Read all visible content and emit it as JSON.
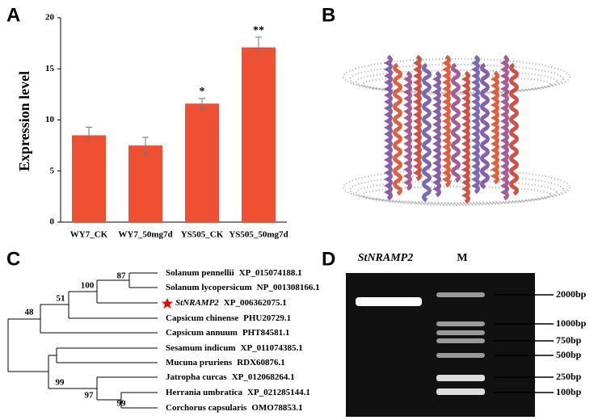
{
  "chart_data": {
    "type": "bar",
    "panel_label": "A",
    "ylabel": "Expression level",
    "categories": [
      "WY7_CK",
      "WY7_50mg7d",
      "YS505_CK",
      "YS505_50mg7d"
    ],
    "values": [
      8.5,
      7.5,
      11.6,
      17.1
    ],
    "errors": [
      0.8,
      0.8,
      0.5,
      1.0
    ],
    "significance": [
      null,
      null,
      "*",
      "**"
    ],
    "color": "#f05032",
    "ylim": [
      0,
      20
    ],
    "yticks": [
      0,
      5,
      10,
      15,
      20
    ]
  },
  "panel_b": {
    "label": "B"
  },
  "panel_c": {
    "label": "C",
    "taxa": [
      {
        "species": "Solanum pennellii",
        "accession": "XP_015074188.1"
      },
      {
        "species": "Solanum lycopersicum",
        "accession": "NP_001308166.1"
      },
      {
        "species": "StNRAMP2",
        "accession": "XP_006362075.1"
      },
      {
        "species": "Capsicum chinense",
        "accession": "PHU20729.1"
      },
      {
        "species": "Capsicum annuum",
        "accession": "PHT84581.1"
      },
      {
        "species": "Sesamum indicum",
        "accession": "XP_011074385.1"
      },
      {
        "species": "Mucuna pruriens",
        "accession": "RDX60876.1"
      },
      {
        "species": "Jatropha curcas",
        "accession": "XP_012068264.1"
      },
      {
        "species": "Herrania umbratica",
        "accession": "XP_021285144.1"
      },
      {
        "species": "Corchorus capsularis",
        "accession": "OMO78853.1"
      }
    ],
    "bootstrap": [
      87,
      100,
      51,
      48,
      99,
      97,
      99
    ]
  },
  "panel_d": {
    "label": "D",
    "lanes": [
      "StNRAMP2",
      "M"
    ],
    "markers": [
      "2000bp",
      "1000bp",
      "750bp",
      "500bp",
      "250bp",
      "100bp"
    ]
  }
}
